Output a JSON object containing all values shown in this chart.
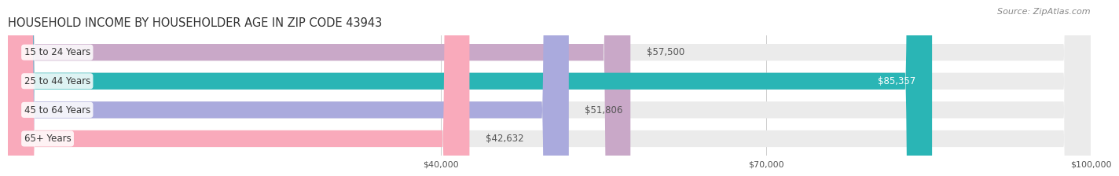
{
  "title": "HOUSEHOLD INCOME BY HOUSEHOLDER AGE IN ZIP CODE 43943",
  "source": "Source: ZipAtlas.com",
  "categories": [
    "15 to 24 Years",
    "25 to 44 Years",
    "45 to 64 Years",
    "65+ Years"
  ],
  "values": [
    57500,
    85357,
    51806,
    42632
  ],
  "labels": [
    "$57,500",
    "$85,357",
    "$51,806",
    "$42,632"
  ],
  "bar_colors": [
    "#c9a8c8",
    "#2ab5b5",
    "#aaaadd",
    "#f9aabb"
  ],
  "bar_bg_color": "#ebebeb",
  "xmin": 0,
  "xmax": 100000,
  "xticks": [
    40000,
    70000,
    100000
  ],
  "xtick_labels": [
    "$40,000",
    "$70,000",
    "$100,000"
  ],
  "title_fontsize": 10.5,
  "source_fontsize": 8,
  "label_fontsize": 8.5,
  "cat_fontsize": 8.5,
  "bar_height": 0.58,
  "background_color": "#ffffff",
  "label_inside_threshold": 75000
}
